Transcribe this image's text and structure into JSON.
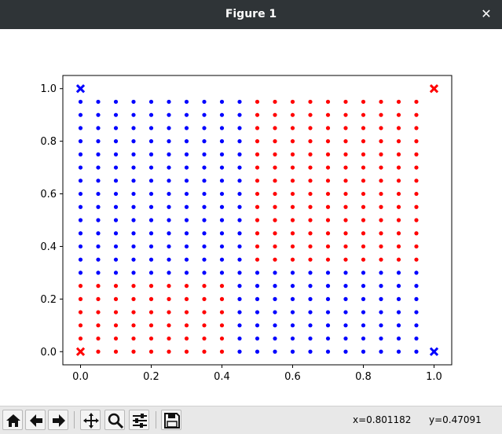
{
  "window": {
    "title": "Figure 1"
  },
  "toolbar": {
    "buttons": [
      {
        "name": "home",
        "icon": "home-icon"
      },
      {
        "name": "back",
        "icon": "arrow-left-icon"
      },
      {
        "name": "forward",
        "icon": "arrow-right-icon"
      },
      {
        "name": "pan",
        "icon": "move-icon"
      },
      {
        "name": "zoom",
        "icon": "magnifier-icon"
      },
      {
        "name": "configure",
        "icon": "sliders-icon"
      },
      {
        "name": "save",
        "icon": "floppy-icon"
      }
    ],
    "x_readout": "x=0.801182",
    "y_readout": "y=0.47091"
  },
  "colors": {
    "blue": "#0000ff",
    "red": "#ff0000"
  },
  "chart_data": {
    "type": "scatter",
    "xlim": [
      -0.05,
      1.05
    ],
    "ylim": [
      -0.05,
      1.05
    ],
    "xticks": [
      0.0,
      0.2,
      0.4,
      0.6,
      0.8,
      1.0
    ],
    "xtick_labels": [
      "0.0",
      "0.2",
      "0.4",
      "0.6",
      "0.8",
      "1.0"
    ],
    "yticks": [
      0.0,
      0.2,
      0.4,
      0.6,
      0.8,
      1.0
    ],
    "ytick_labels": [
      "0.0",
      "0.2",
      "0.4",
      "0.6",
      "0.8",
      "1.0"
    ],
    "grid": false,
    "grid_step": 0.05,
    "grid_max": 0.95,
    "red_lower_left": {
      "x_max": 0.4,
      "y_max": 0.25
    },
    "red_upper_right": {
      "x_min": 0.5,
      "y_min": 0.35
    },
    "corner_markers": [
      {
        "x": 0.0,
        "y": 1.0,
        "color": "blue"
      },
      {
        "x": 1.0,
        "y": 1.0,
        "color": "red"
      },
      {
        "x": 0.0,
        "y": 0.0,
        "color": "red"
      },
      {
        "x": 1.0,
        "y": 0.0,
        "color": "blue"
      }
    ]
  }
}
